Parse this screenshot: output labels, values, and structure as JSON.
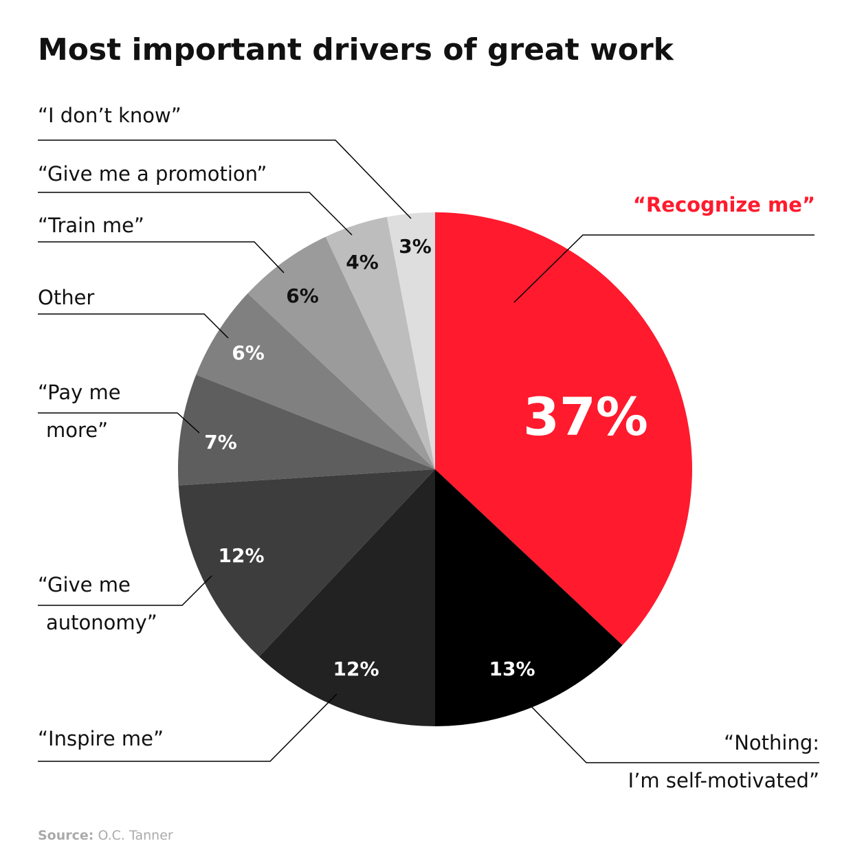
{
  "chart_data": {
    "type": "pie",
    "title": "Most important drivers of great work",
    "categories": [
      "“Recognize me”",
      "“Nothing:\nI’m self-motivated”",
      "“Inspire me”",
      "“Give me\nautonomy”",
      "“Pay me\nmore”",
      "Other",
      "“Train me”",
      "“Give me a promotion”",
      "“I don’t know”"
    ],
    "values": [
      37,
      13,
      12,
      12,
      7,
      6,
      6,
      4,
      3
    ],
    "value_labels": [
      "37%",
      "13%",
      "12%",
      "12%",
      "7%",
      "6%",
      "6%",
      "4%",
      "3%"
    ],
    "colors": [
      "#ff1a2d",
      "#000000",
      "#222222",
      "#3d3d3d",
      "#5e5e5e",
      "#808080",
      "#9b9b9b",
      "#bdbdbd",
      "#dedede"
    ],
    "source_label": "Source:",
    "source": "O.C. Tanner"
  }
}
